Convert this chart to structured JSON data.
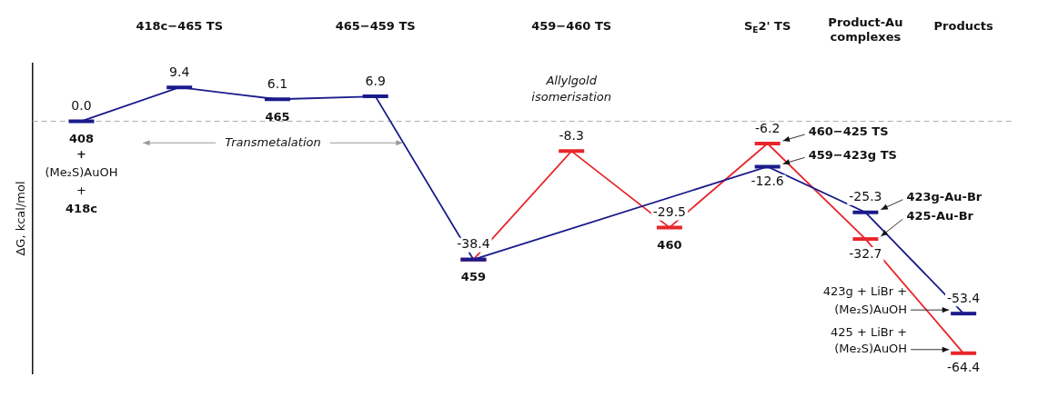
{
  "chart_data": {
    "type": "line",
    "ylabel": "ΔG, kcal/mol",
    "categories": [
      null,
      "418c−465 TS",
      null,
      "465−459 TS",
      null,
      "459−460 TS",
      null,
      "S$_{E}$2' TS",
      "Product-Au complexes",
      "Products"
    ],
    "series": [
      {
        "color": "#1a1a8c",
        "values": [
          0.0,
          9.4,
          6.1,
          6.9,
          -38.4,
          null,
          null,
          -12.6,
          -25.3,
          -53.4
        ],
        "value_labels": [
          "0.0",
          "9.4",
          "6.1",
          "6.9",
          "-38.4",
          null,
          null,
          "-12.6",
          "-25.3",
          "-53.4"
        ]
      },
      {
        "color": "#e8262b",
        "values": [
          null,
          null,
          null,
          null,
          -38.4,
          -8.3,
          -29.5,
          -6.2,
          -32.7,
          -64.4
        ],
        "value_labels": [
          null,
          null,
          null,
          null,
          null,
          "-8.3",
          "-29.5",
          "-6.2",
          "-32.7",
          "-64.4"
        ]
      }
    ],
    "ylim": [
      -70,
      16
    ],
    "tick_labels": "x",
    "grid": false,
    "legend": false,
    "ref_lines": [
      {
        "axis": "y",
        "value": 0,
        "color": "#aaaaaa",
        "line_style": "dashed"
      }
    ],
    "annotations": [
      "408",
      "+",
      "(Me₂S)AuOH",
      "+",
      "418c",
      "465",
      "Transmetalation",
      "Allylgold",
      "isomerisation",
      "459",
      "460",
      "460−425 TS",
      "459−423g TS",
      "423g-Au-Br",
      "425-Au-Br",
      "423g + LiBr +",
      "(Me₂S)AuOH",
      "425 + LiBr +",
      "(Me₂S)AuOH"
    ]
  }
}
